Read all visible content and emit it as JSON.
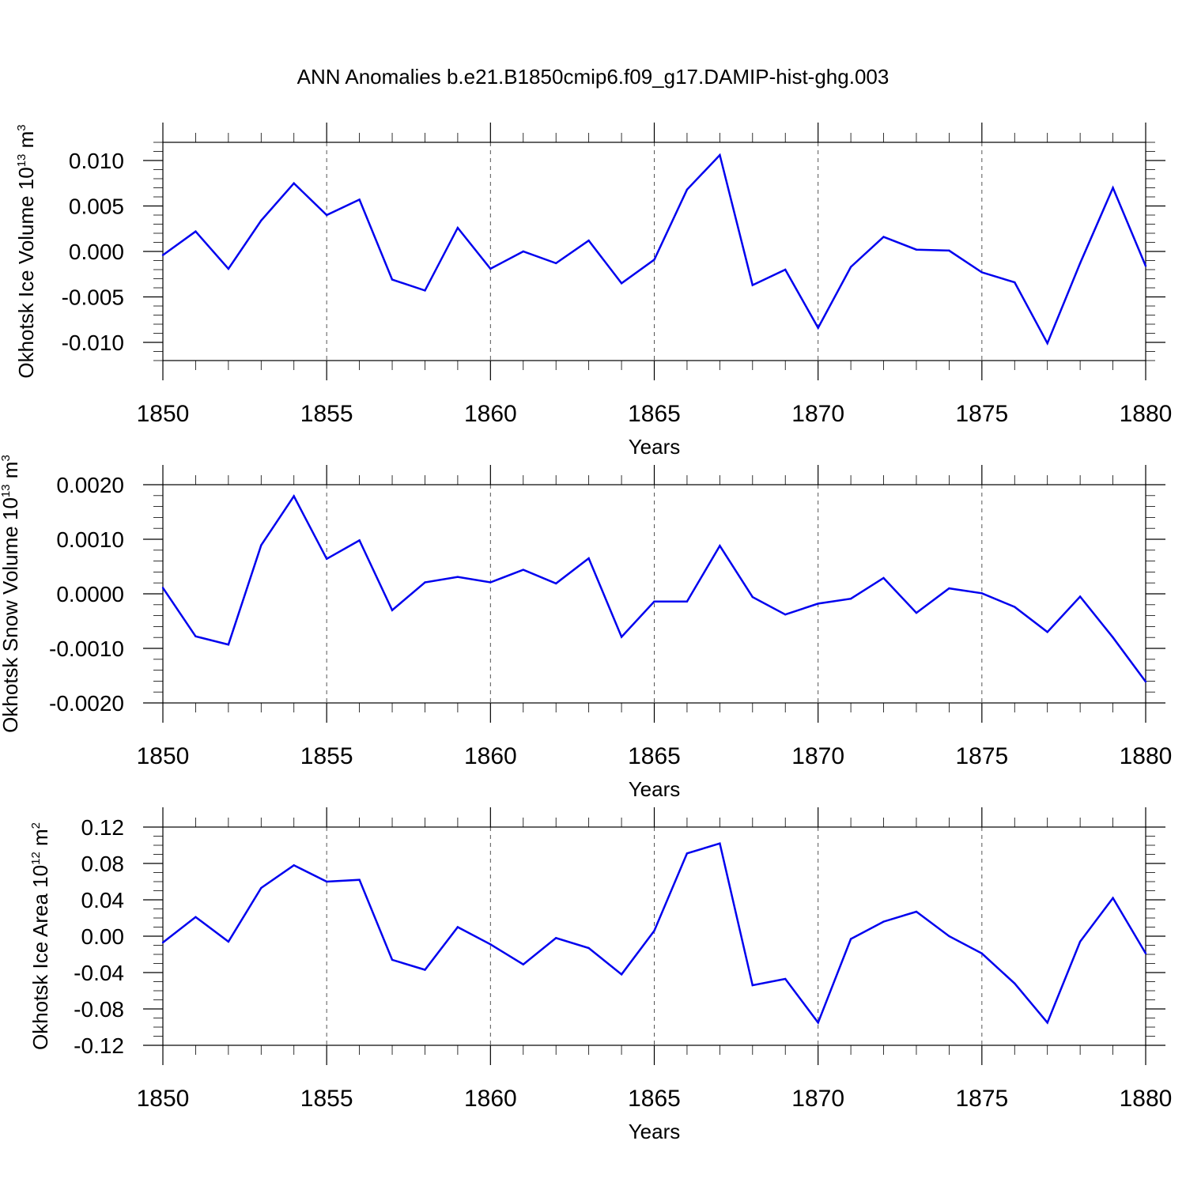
{
  "title": "ANN Anomalies b.e21.B1850cmip6.f09_g17.DAMIP-hist-ghg.003",
  "colors": {
    "series": "#0000ee",
    "grid": "#555555",
    "axis": "#000000"
  },
  "chart_data": [
    {
      "type": "line",
      "ylabel": "Okhotsk Ice Volume 10",
      "ylabel_exp": "13",
      "ylabel_unit": " m",
      "ylabel_unit_exp": "3",
      "xlabel": "Years",
      "xlim": [
        1850,
        1880
      ],
      "ylim": [
        -0.012,
        0.012
      ],
      "yticks": [
        -0.01,
        -0.005,
        0.0,
        0.005,
        0.01
      ],
      "ytick_labels": [
        "-0.010",
        "-0.005",
        "0.000",
        "0.005",
        "0.010"
      ],
      "yminor": 0.001,
      "xticks": [
        1850,
        1855,
        1860,
        1865,
        1870,
        1875,
        1880
      ],
      "xtick_labels": [
        "1850",
        "1855",
        "1860",
        "1865",
        "1870",
        "1875",
        "1880"
      ],
      "grid": "vertical dashed at major x ticks",
      "x": [
        1850,
        1851,
        1852,
        1853,
        1854,
        1855,
        1856,
        1857,
        1858,
        1859,
        1860,
        1861,
        1862,
        1863,
        1864,
        1865,
        1866,
        1867,
        1868,
        1869,
        1870,
        1871,
        1872,
        1873,
        1874,
        1875,
        1876,
        1877,
        1878,
        1879,
        1880
      ],
      "values": [
        -0.0004,
        0.0022,
        -0.0019,
        0.0034,
        0.0075,
        0.004,
        0.0057,
        -0.0031,
        -0.0043,
        0.0026,
        -0.0019,
        0.0,
        -0.0013,
        0.0012,
        -0.0035,
        -0.0009,
        0.0068,
        0.0106,
        -0.0037,
        -0.002,
        -0.0084,
        -0.0017,
        0.0016,
        0.0002,
        0.0001,
        -0.0023,
        -0.0034,
        -0.0101,
        -0.0013,
        0.007,
        -0.0016
      ]
    },
    {
      "type": "line",
      "ylabel": "Okhotsk Snow Volume 10",
      "ylabel_exp": "13",
      "ylabel_unit": " m",
      "ylabel_unit_exp": "3",
      "xlabel": "Years",
      "xlim": [
        1850,
        1880
      ],
      "ylim": [
        -0.002,
        0.002
      ],
      "yticks": [
        -0.002,
        -0.001,
        0.0,
        0.001,
        0.002
      ],
      "ytick_labels": [
        "-0.0020",
        "-0.0010",
        "0.0000",
        "0.0010",
        "0.0020"
      ],
      "yminor": 0.0002,
      "xticks": [
        1850,
        1855,
        1860,
        1865,
        1870,
        1875,
        1880
      ],
      "xtick_labels": [
        "1850",
        "1855",
        "1860",
        "1865",
        "1870",
        "1875",
        "1880"
      ],
      "grid": "vertical dashed at major x ticks",
      "x": [
        1850,
        1851,
        1852,
        1853,
        1854,
        1855,
        1856,
        1857,
        1858,
        1859,
        1860,
        1861,
        1862,
        1863,
        1864,
        1865,
        1866,
        1867,
        1868,
        1869,
        1870,
        1871,
        1872,
        1873,
        1874,
        1875,
        1876,
        1877,
        1878,
        1879,
        1880
      ],
      "values": [
        0.00011,
        -0.00078,
        -0.00093,
        0.00089,
        0.00179,
        0.00064,
        0.00098,
        -0.0003,
        0.00021,
        0.00031,
        0.00021,
        0.00044,
        0.00019,
        0.00065,
        -0.00079,
        -0.00014,
        -0.00014,
        0.00088,
        -6e-05,
        -0.00038,
        -0.00018,
        -9e-05,
        0.00029,
        -0.00035,
        0.0001,
        1e-05,
        -0.00024,
        -0.0007,
        -5e-05,
        -0.0008,
        -0.00161
      ]
    },
    {
      "type": "line",
      "ylabel": "Okhotsk Ice Area 10",
      "ylabel_exp": "12",
      "ylabel_unit": " m",
      "ylabel_unit_exp": "2",
      "xlabel": "Years",
      "xlim": [
        1850,
        1880
      ],
      "ylim": [
        -0.12,
        0.12
      ],
      "yticks": [
        -0.12,
        -0.08,
        -0.04,
        0.0,
        0.04,
        0.08,
        0.12
      ],
      "ytick_labels": [
        "-0.12",
        "-0.08",
        "-0.04",
        "0.00",
        "0.04",
        "0.08",
        "0.12"
      ],
      "yminor": 0.01,
      "xticks": [
        1850,
        1855,
        1860,
        1865,
        1870,
        1875,
        1880
      ],
      "xtick_labels": [
        "1850",
        "1855",
        "1860",
        "1865",
        "1870",
        "1875",
        "1880"
      ],
      "grid": "vertical dashed at major x ticks",
      "x": [
        1850,
        1851,
        1852,
        1853,
        1854,
        1855,
        1856,
        1857,
        1858,
        1859,
        1860,
        1861,
        1862,
        1863,
        1864,
        1865,
        1866,
        1867,
        1868,
        1869,
        1870,
        1871,
        1872,
        1873,
        1874,
        1875,
        1876,
        1877,
        1878,
        1879,
        1880
      ],
      "values": [
        -0.007,
        0.021,
        -0.006,
        0.053,
        0.078,
        0.06,
        0.062,
        -0.026,
        -0.037,
        0.01,
        -0.009,
        -0.031,
        -0.002,
        -0.013,
        -0.042,
        0.006,
        0.091,
        0.102,
        -0.054,
        -0.047,
        -0.095,
        -0.003,
        0.016,
        0.027,
        0.0,
        -0.019,
        -0.052,
        -0.095,
        -0.006,
        0.042,
        -0.019
      ]
    }
  ]
}
